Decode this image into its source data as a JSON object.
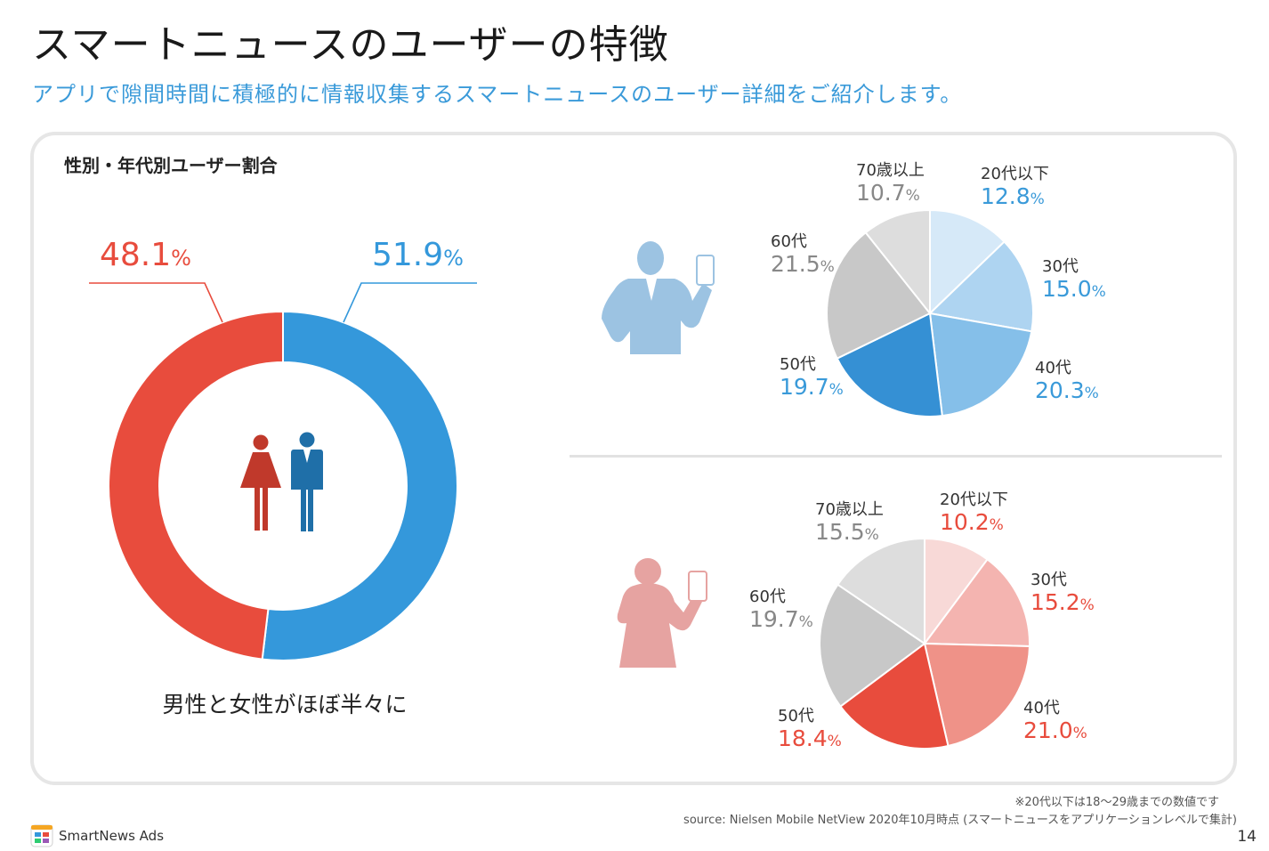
{
  "header": {
    "title": "スマートニュースのユーザーの特徴",
    "subtitle": "アプリで隙間時間に積極的に情報収集するスマートニュースのユーザー詳細をご紹介します。"
  },
  "section_title": "性別・年代別ユーザー割合",
  "caption": "男性と女性がほぼ半々に",
  "footnote": "※20代以下は18〜29歳までの数値です",
  "source": "source: Nielsen Mobile NetView 2020年10月時点 (スマートニュースをアプリケーションレベルで集計)",
  "page_number": "14",
  "logo_text": "SmartNews Ads",
  "colors": {
    "female_red": "#e84c3d",
    "male_blue": "#3498db",
    "male_icon": "#1f6fa8",
    "female_icon": "#c0392b",
    "male_person": "#9cc3e2",
    "female_person": "#e6a3a1",
    "label_gray": "#888888"
  },
  "chart_data": [
    {
      "type": "pie",
      "variant": "donut",
      "series": [
        {
          "name": "female",
          "value": 48.1,
          "value_text": "48.1",
          "unit": "%",
          "color": "#e84c3d"
        },
        {
          "name": "male",
          "value": 51.9,
          "value_text": "51.9",
          "unit": "%",
          "color": "#3498db"
        }
      ]
    },
    {
      "type": "pie",
      "group": "male",
      "slices": [
        {
          "label": "20代以下",
          "value": 12.8,
          "value_text": "12.8",
          "unit": "%",
          "color": "#d6e9f8",
          "text_color": "#3a9ad9"
        },
        {
          "label": "30代",
          "value": 15.0,
          "value_text": "15.0",
          "unit": "%",
          "color": "#aed4f1",
          "text_color": "#3a9ad9"
        },
        {
          "label": "40代",
          "value": 20.3,
          "value_text": "20.3",
          "unit": "%",
          "color": "#85bfe9",
          "text_color": "#3a9ad9"
        },
        {
          "label": "50代",
          "value": 19.7,
          "value_text": "19.7",
          "unit": "%",
          "color": "#3590d4",
          "text_color": "#3a9ad9"
        },
        {
          "label": "60代",
          "value": 21.5,
          "value_text": "21.5",
          "unit": "%",
          "color": "#c8c8c8",
          "text_color": "#888888"
        },
        {
          "label": "70歳以上",
          "value": 10.7,
          "value_text": "10.7",
          "unit": "%",
          "color": "#dddddd",
          "text_color": "#888888"
        }
      ]
    },
    {
      "type": "pie",
      "group": "female",
      "slices": [
        {
          "label": "20代以下",
          "value": 10.2,
          "value_text": "10.2",
          "unit": "%",
          "color": "#f8d9d7",
          "text_color": "#e84c3d"
        },
        {
          "label": "30代",
          "value": 15.2,
          "value_text": "15.2",
          "unit": "%",
          "color": "#f4b4b0",
          "text_color": "#e84c3d"
        },
        {
          "label": "40代",
          "value": 21.0,
          "value_text": "21.0",
          "unit": "%",
          "color": "#ef9288",
          "text_color": "#e84c3d"
        },
        {
          "label": "50代",
          "value": 18.4,
          "value_text": "18.4",
          "unit": "%",
          "color": "#e84c3d",
          "text_color": "#e84c3d"
        },
        {
          "label": "60代",
          "value": 19.7,
          "value_text": "19.7",
          "unit": "%",
          "color": "#c8c8c8",
          "text_color": "#888888"
        },
        {
          "label": "70歳以上",
          "value": 15.5,
          "value_text": "15.5",
          "unit": "%",
          "color": "#dddddd",
          "text_color": "#888888"
        }
      ]
    }
  ]
}
